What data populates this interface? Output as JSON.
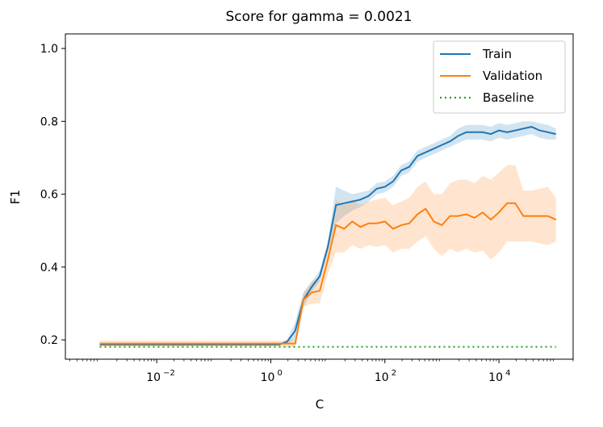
{
  "chart_data": {
    "type": "line",
    "title": "Score for gamma = 0.0021",
    "xlabel": "C",
    "ylabel": "F1",
    "xscale": "log",
    "xlim": [
      0.00025,
      200000
    ],
    "ylim": [
      0.147,
      1.04
    ],
    "grid": false,
    "legend_position": "top-right",
    "x_ticks": [
      {
        "value": 0.01,
        "base": "10",
        "exp": "−2"
      },
      {
        "value": 1,
        "base": "10",
        "exp": "0"
      },
      {
        "value": 100,
        "base": "10",
        "exp": "2"
      },
      {
        "value": 10000,
        "base": "10",
        "exp": "4"
      }
    ],
    "y_ticks": [
      {
        "value": 0.2,
        "label": "0.2"
      },
      {
        "value": 0.4,
        "label": "0.4"
      },
      {
        "value": 0.6,
        "label": "0.6"
      },
      {
        "value": 0.8,
        "label": "0.8"
      },
      {
        "value": 1.0,
        "label": "1.0"
      }
    ],
    "x": [
      0.001,
      0.00139,
      0.00193,
      0.00268,
      0.00373,
      0.00518,
      0.0072,
      0.01,
      0.0139,
      0.0193,
      0.0268,
      0.0373,
      0.0518,
      0.072,
      0.1,
      0.139,
      0.193,
      0.268,
      0.373,
      0.518,
      0.72,
      1,
      1.39,
      1.93,
      2.68,
      3.73,
      5.18,
      7.2,
      10,
      13.9,
      19.3,
      26.8,
      37.3,
      51.8,
      72,
      100,
      139,
      193,
      268,
      373,
      518,
      720,
      1000,
      1390,
      1930,
      2680,
      3730,
      5180,
      7200,
      10000,
      13900,
      19300,
      26800,
      37300,
      51800,
      72000,
      100000
    ],
    "series": [
      {
        "name": "Train",
        "color": "#1f77b4",
        "style": "solid",
        "values": [
          0.187,
          0.187,
          0.187,
          0.187,
          0.187,
          0.187,
          0.187,
          0.187,
          0.187,
          0.187,
          0.187,
          0.187,
          0.187,
          0.187,
          0.187,
          0.187,
          0.187,
          0.187,
          0.187,
          0.187,
          0.187,
          0.187,
          0.187,
          0.195,
          0.225,
          0.31,
          0.345,
          0.375,
          0.455,
          0.57,
          0.575,
          0.58,
          0.585,
          0.595,
          0.615,
          0.62,
          0.635,
          0.665,
          0.675,
          0.705,
          0.715,
          0.725,
          0.735,
          0.745,
          0.76,
          0.77,
          0.77,
          0.77,
          0.765,
          0.775,
          0.77,
          0.775,
          0.78,
          0.785,
          0.775,
          0.77,
          0.765
        ],
        "lower": [
          0.185,
          0.185,
          0.185,
          0.185,
          0.185,
          0.185,
          0.185,
          0.185,
          0.185,
          0.185,
          0.185,
          0.185,
          0.185,
          0.185,
          0.185,
          0.185,
          0.185,
          0.185,
          0.185,
          0.185,
          0.185,
          0.185,
          0.185,
          0.19,
          0.2,
          0.29,
          0.33,
          0.36,
          0.44,
          0.52,
          0.54,
          0.555,
          0.565,
          0.58,
          0.6,
          0.605,
          0.62,
          0.65,
          0.66,
          0.69,
          0.7,
          0.71,
          0.72,
          0.73,
          0.74,
          0.75,
          0.75,
          0.75,
          0.745,
          0.755,
          0.75,
          0.755,
          0.76,
          0.765,
          0.755,
          0.75,
          0.75
        ],
        "upper": [
          0.19,
          0.19,
          0.19,
          0.19,
          0.19,
          0.19,
          0.19,
          0.19,
          0.19,
          0.19,
          0.19,
          0.19,
          0.19,
          0.19,
          0.19,
          0.19,
          0.19,
          0.19,
          0.19,
          0.19,
          0.19,
          0.19,
          0.19,
          0.2,
          0.25,
          0.33,
          0.36,
          0.39,
          0.47,
          0.62,
          0.61,
          0.6,
          0.605,
          0.61,
          0.63,
          0.635,
          0.65,
          0.68,
          0.69,
          0.72,
          0.73,
          0.74,
          0.75,
          0.76,
          0.78,
          0.79,
          0.79,
          0.79,
          0.785,
          0.795,
          0.79,
          0.795,
          0.8,
          0.8,
          0.795,
          0.79,
          0.78
        ]
      },
      {
        "name": "Validation",
        "color": "#ff7f0e",
        "style": "solid",
        "values": [
          0.19,
          0.19,
          0.19,
          0.19,
          0.19,
          0.19,
          0.19,
          0.19,
          0.19,
          0.19,
          0.19,
          0.19,
          0.19,
          0.19,
          0.19,
          0.19,
          0.19,
          0.19,
          0.19,
          0.19,
          0.19,
          0.19,
          0.19,
          0.19,
          0.19,
          0.31,
          0.33,
          0.335,
          0.42,
          0.515,
          0.505,
          0.525,
          0.51,
          0.52,
          0.52,
          0.525,
          0.505,
          0.515,
          0.52,
          0.545,
          0.56,
          0.525,
          0.515,
          0.54,
          0.54,
          0.545,
          0.535,
          0.55,
          0.53,
          0.55,
          0.575,
          0.575,
          0.54,
          0.54,
          0.54,
          0.54,
          0.53
        ],
        "lower": [
          0.182,
          0.182,
          0.182,
          0.182,
          0.182,
          0.182,
          0.182,
          0.182,
          0.182,
          0.182,
          0.182,
          0.182,
          0.182,
          0.182,
          0.182,
          0.182,
          0.182,
          0.182,
          0.182,
          0.182,
          0.182,
          0.182,
          0.182,
          0.18,
          0.18,
          0.29,
          0.3,
          0.3,
          0.38,
          0.44,
          0.44,
          0.46,
          0.45,
          0.46,
          0.455,
          0.46,
          0.44,
          0.45,
          0.45,
          0.47,
          0.485,
          0.45,
          0.43,
          0.45,
          0.44,
          0.45,
          0.44,
          0.445,
          0.42,
          0.44,
          0.47,
          0.47,
          0.47,
          0.47,
          0.465,
          0.46,
          0.47
        ],
        "upper": [
          0.198,
          0.198,
          0.198,
          0.198,
          0.198,
          0.198,
          0.198,
          0.198,
          0.198,
          0.198,
          0.198,
          0.198,
          0.198,
          0.198,
          0.198,
          0.198,
          0.198,
          0.198,
          0.198,
          0.198,
          0.198,
          0.198,
          0.198,
          0.2,
          0.2,
          0.33,
          0.36,
          0.37,
          0.46,
          0.585,
          0.57,
          0.585,
          0.57,
          0.58,
          0.585,
          0.59,
          0.57,
          0.58,
          0.59,
          0.62,
          0.635,
          0.6,
          0.6,
          0.63,
          0.64,
          0.64,
          0.63,
          0.65,
          0.64,
          0.66,
          0.68,
          0.68,
          0.61,
          0.61,
          0.615,
          0.62,
          0.59
        ]
      },
      {
        "name": "Baseline",
        "color": "#2ca02c",
        "style": "dotted",
        "values": [
          0.181,
          0.181,
          0.181,
          0.181,
          0.181,
          0.181,
          0.181,
          0.181,
          0.181,
          0.181,
          0.181,
          0.181,
          0.181,
          0.181,
          0.181,
          0.181,
          0.181,
          0.181,
          0.181,
          0.181,
          0.181,
          0.181,
          0.181,
          0.181,
          0.181,
          0.181,
          0.181,
          0.181,
          0.181,
          0.181,
          0.181,
          0.181,
          0.181,
          0.181,
          0.181,
          0.181,
          0.181,
          0.181,
          0.181,
          0.181,
          0.181,
          0.181,
          0.181,
          0.181,
          0.181,
          0.181,
          0.181,
          0.181,
          0.181,
          0.181,
          0.181,
          0.181,
          0.181,
          0.181,
          0.181,
          0.181,
          0.181
        ]
      }
    ]
  }
}
